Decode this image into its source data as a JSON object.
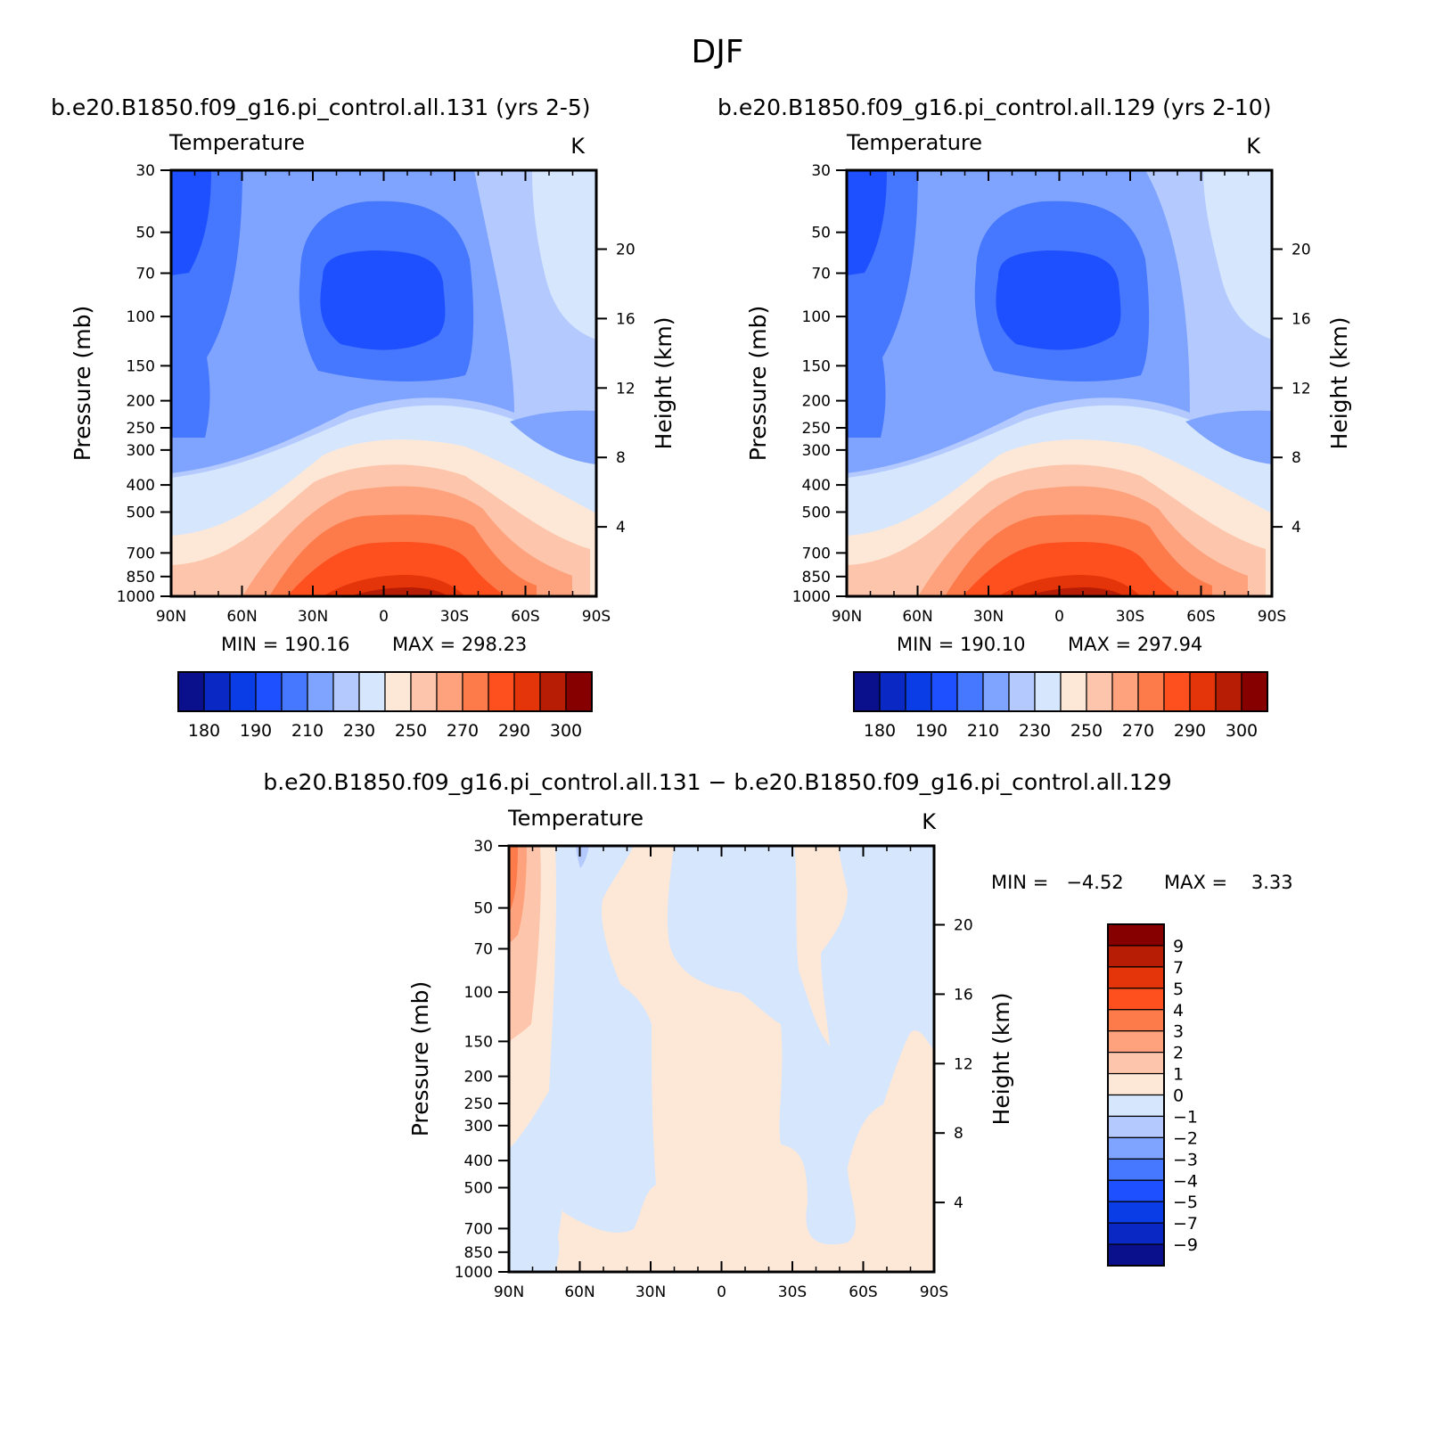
{
  "figure": {
    "title": "DJF"
  },
  "colors": {
    "fill_levels": [
      "#0a0f8c",
      "#0a28c4",
      "#0a3de6",
      "#1e50ff",
      "#4677ff",
      "#7fa4ff",
      "#b4caff",
      "#d6e6fd",
      "#fde8d7",
      "#fdc5ab",
      "#fda27c",
      "#fd7b4a",
      "#fd501e",
      "#e43409",
      "#b71c04",
      "#870000"
    ]
  },
  "chart_data": [
    {
      "type": "heatmap",
      "id": "top-left",
      "title": "b.e20.B1850.f09_g16.pi_control.all.131 (yrs 2-5)",
      "variable": "Temperature",
      "units": "K",
      "ylabel": "Pressure (mb)",
      "ylabel_right": "Height (km)",
      "x_ticks": [
        "90N",
        "60N",
        "30N",
        "0",
        "30S",
        "60S",
        "90S"
      ],
      "y_ticks": [
        "30",
        "50",
        "70",
        "100",
        "150",
        "200",
        "250",
        "300",
        "400",
        "500",
        "700",
        "850",
        "1000"
      ],
      "y_ticks_right": [
        "4",
        "8",
        "12",
        "16",
        "20"
      ],
      "min_label": "MIN = 190.16",
      "max_label": "MAX = 298.23",
      "colorbar_labels": [
        "180",
        "190",
        "210",
        "230",
        "250",
        "270",
        "290",
        "300"
      ],
      "colorbar_level_count": 16
    },
    {
      "type": "heatmap",
      "id": "top-right",
      "title": "b.e20.B1850.f09_g16.pi_control.all.129 (yrs 2-10)",
      "variable": "Temperature",
      "units": "K",
      "ylabel": "Pressure (mb)",
      "ylabel_right": "Height (km)",
      "x_ticks": [
        "90N",
        "60N",
        "30N",
        "0",
        "30S",
        "60S",
        "90S"
      ],
      "y_ticks": [
        "30",
        "50",
        "70",
        "100",
        "150",
        "200",
        "250",
        "300",
        "400",
        "500",
        "700",
        "850",
        "1000"
      ],
      "y_ticks_right": [
        "4",
        "8",
        "12",
        "16",
        "20"
      ],
      "min_label": "MIN = 190.10",
      "max_label": "MAX = 297.94",
      "colorbar_labels": [
        "180",
        "190",
        "210",
        "230",
        "250",
        "270",
        "290",
        "300"
      ],
      "colorbar_level_count": 16
    },
    {
      "type": "heatmap",
      "id": "bottom-diff",
      "title": "b.e20.B1850.f09_g16.pi_control.all.131 − b.e20.B1850.f09_g16.pi_control.all.129",
      "variable": "Temperature",
      "units": "K",
      "ylabel": "Pressure (mb)",
      "ylabel_right": "Height (km)",
      "x_ticks": [
        "90N",
        "60N",
        "30N",
        "0",
        "30S",
        "60S",
        "90S"
      ],
      "y_ticks": [
        "30",
        "50",
        "70",
        "100",
        "150",
        "200",
        "250",
        "300",
        "400",
        "500",
        "700",
        "850",
        "1000"
      ],
      "y_ticks_right": [
        "4",
        "8",
        "12",
        "16",
        "20"
      ],
      "min_label": "MIN =   −4.52",
      "max_label": "MAX =    3.33",
      "colorbar_labels": [
        "9",
        "7",
        "5",
        "4",
        "3",
        "2",
        "1",
        "0",
        "−1",
        "−2",
        "−3",
        "−4",
        "−5",
        "−7",
        "−9"
      ],
      "colorbar_level_count": 16
    }
  ]
}
